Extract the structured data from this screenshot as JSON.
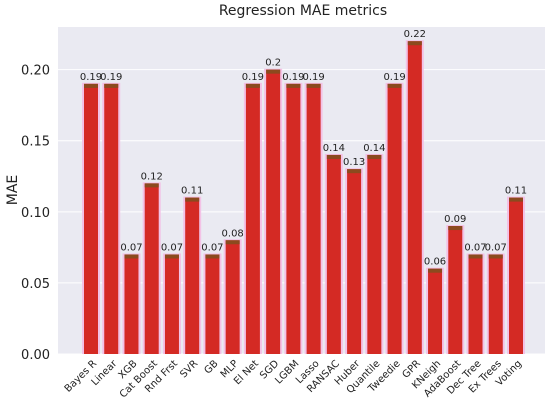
{
  "chart_data": {
    "type": "bar",
    "title": "Regression MAE metrics",
    "xlabel": "",
    "ylabel": "MAE",
    "categories": [
      "Bayes R",
      "Linear",
      "XGB",
      "Cat Boost",
      "Rnd Frst",
      "SVR",
      "GB",
      "MLP",
      "El Net",
      "SGD",
      "LGBM",
      "Lasso",
      "RANSAC",
      "Huber",
      "Quantile",
      "Tweedie",
      "GPR",
      "KNeigh",
      "AdaBoost",
      "Dec Tree",
      "Ex Trees",
      "Voting"
    ],
    "values": [
      0.19,
      0.19,
      0.07,
      0.12,
      0.07,
      0.11,
      0.07,
      0.08,
      0.19,
      0.2,
      0.19,
      0.19,
      0.14,
      0.13,
      0.14,
      0.19,
      0.22,
      0.06,
      0.09,
      0.07,
      0.07,
      0.11
    ],
    "data_labels": [
      "0.19",
      "0.19",
      "0.07",
      "0.12",
      "0.07",
      "0.11",
      "0.07",
      "0.08",
      "0.19",
      "0.2",
      "0.19",
      "0.19",
      "0.14",
      "0.13",
      "0.14",
      "0.19",
      "0.22",
      "0.06",
      "0.09",
      "0.07",
      "0.07",
      "0.11"
    ],
    "yticks": [
      0.0,
      0.05,
      0.1,
      0.15,
      0.2
    ],
    "ytick_labels": [
      "0.00",
      "0.05",
      "0.10",
      "0.15",
      "0.20"
    ],
    "ylim": [
      0,
      0.23
    ],
    "grid": true,
    "legend": "none",
    "colors": {
      "background": "#EAEAF2",
      "grid": "#FFFFFF",
      "bar": "#D42A24",
      "bar_top": "#8B4A1E",
      "bar_glow": "#F3C2E6"
    }
  }
}
